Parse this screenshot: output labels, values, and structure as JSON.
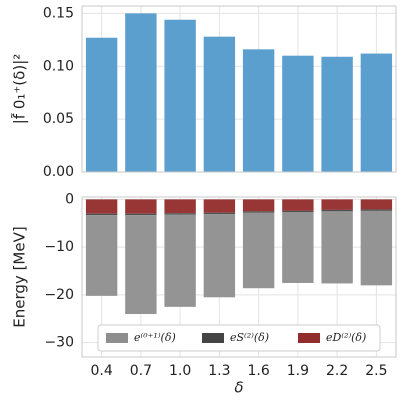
{
  "chart_data": [
    {
      "type": "bar",
      "ylabel": "|f̃ 0₁⁺(δ)|²",
      "categories": [
        "0.4",
        "0.7",
        "1.0",
        "1.3",
        "1.6",
        "1.9",
        "2.2",
        "2.5"
      ],
      "values": [
        0.127,
        0.15,
        0.144,
        0.128,
        0.116,
        0.11,
        0.109,
        0.112
      ],
      "color": "#5b9fcf",
      "ylim": [
        0,
        0.157
      ],
      "yticks": [
        {
          "value": 0,
          "label": "0.00"
        },
        {
          "value": 0.05,
          "label": "0.05"
        },
        {
          "value": 0.1,
          "label": "0.10"
        },
        {
          "value": 0.15,
          "label": "0.15"
        }
      ],
      "grid": true
    },
    {
      "type": "stacked_bar",
      "ylabel": "Energy [MeV]",
      "xlabel": "δ",
      "categories": [
        "0.4",
        "0.7",
        "1.0",
        "1.3",
        "1.6",
        "1.9",
        "2.2",
        "2.5"
      ],
      "series": [
        {
          "name": "eD⁽²⁾(δ)",
          "color": "#922b2b",
          "values": [
            -3.0,
            -3.0,
            -2.9,
            -2.8,
            -2.5,
            -2.4,
            -2.2,
            -2.1
          ]
        },
        {
          "name": "eS⁽²⁾(δ)",
          "color": "#444444",
          "values": [
            -0.3,
            -0.3,
            -0.3,
            -0.3,
            -0.3,
            -0.3,
            -0.3,
            -0.3
          ]
        },
        {
          "name": "e⁽⁰⁺¹⁾(δ)",
          "color": "#8e8e8e",
          "values": [
            -16.9,
            -20.7,
            -19.3,
            -17.4,
            -15.8,
            -14.8,
            -15.1,
            -15.6
          ]
        }
      ],
      "legend_order": [
        2,
        1,
        0
      ],
      "ylim": [
        -33,
        0.5
      ],
      "yticks": [
        {
          "value": -30,
          "label": "−30"
        },
        {
          "value": -20,
          "label": "−20"
        },
        {
          "value": -10,
          "label": "−10"
        },
        0
      ],
      "grid": true,
      "legend": "lower center"
    }
  ]
}
